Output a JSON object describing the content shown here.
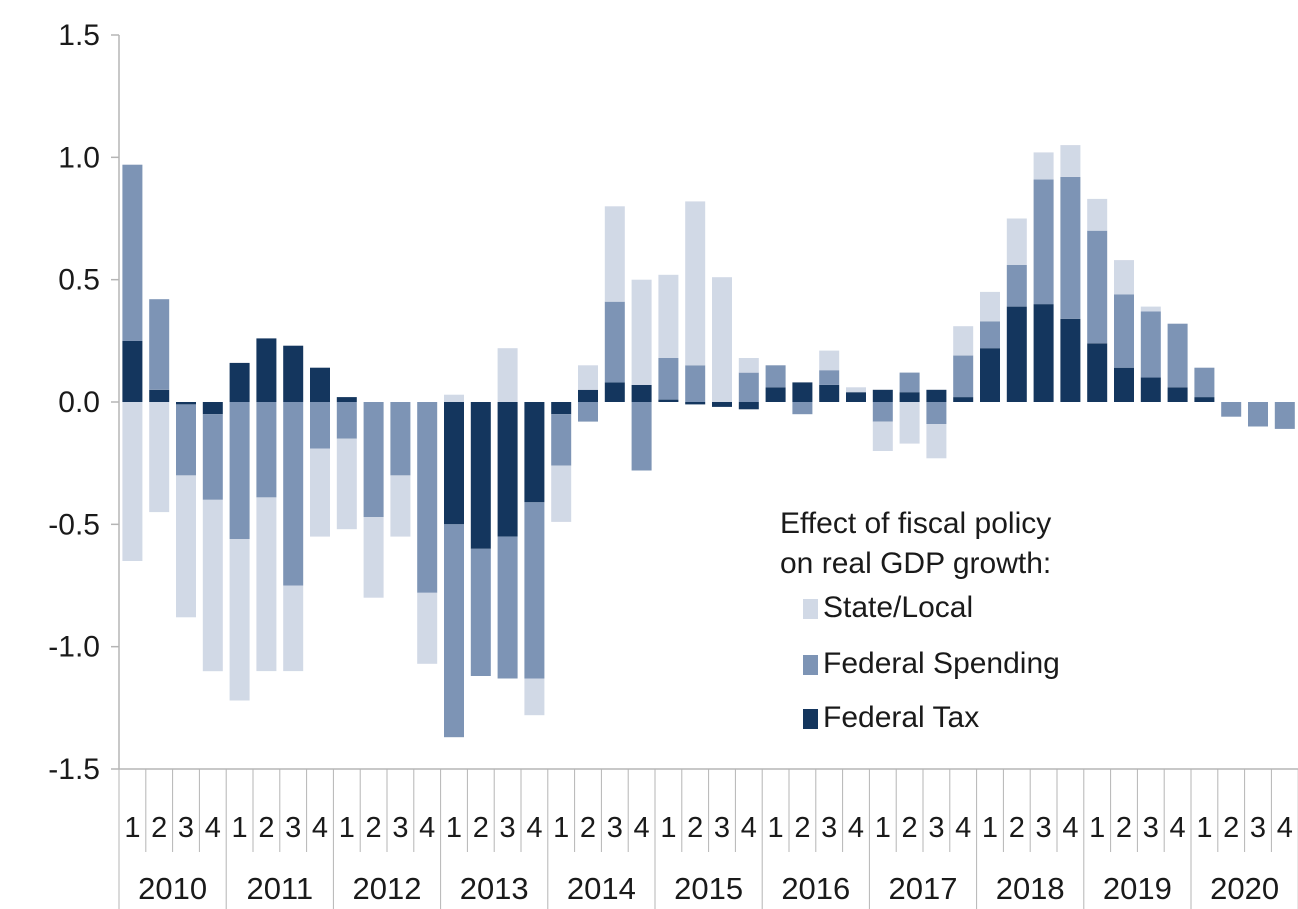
{
  "chart_data": {
    "type": "bar",
    "stacked": true,
    "ylim": [
      -1.5,
      1.5
    ],
    "yticks": [
      "1.5",
      "1.0",
      "0.5",
      "0.0",
      "-0.5",
      "-1.0",
      "-1.5"
    ],
    "ytick_values": [
      1.5,
      1.0,
      0.5,
      0.0,
      -0.5,
      -1.0,
      -1.5
    ],
    "quarter_labels": [
      "1",
      "2",
      "3",
      "4",
      "1",
      "2",
      "3",
      "4",
      "1",
      "2",
      "3",
      "4",
      "1",
      "2",
      "3",
      "4",
      "1",
      "2",
      "3",
      "4",
      "1",
      "2",
      "3",
      "4",
      "1",
      "2",
      "3",
      "4",
      "1",
      "2",
      "3",
      "4",
      "1",
      "2",
      "3",
      "4",
      "1",
      "2",
      "3",
      "4",
      "1",
      "2",
      "3",
      "4"
    ],
    "years": [
      "2010",
      "2011",
      "2012",
      "2013",
      "2014",
      "2015",
      "2016",
      "2017",
      "2018",
      "2019",
      "2020"
    ],
    "grid": false,
    "legend_placement": "center-right",
    "legend_title_lines": [
      "Effect of fiscal policy",
      "on real GDP growth:"
    ],
    "series": [
      {
        "name": "Federal Tax",
        "color": "#14365e",
        "values": [
          0.25,
          0.05,
          -0.01,
          -0.05,
          0.16,
          0.26,
          0.23,
          0.14,
          0.02,
          0,
          0,
          0,
          -0.5,
          -0.6,
          -0.55,
          -0.41,
          -0.05,
          0.05,
          0.08,
          0.07,
          0.01,
          -0.01,
          -0.02,
          -0.03,
          0.06,
          0.08,
          0.07,
          0.04,
          0.05,
          0.04,
          0.05,
          0.02,
          0.22,
          0.39,
          0.4,
          0.34,
          0.24,
          0.14,
          0.1,
          0.06,
          0.02,
          0,
          0,
          0
        ]
      },
      {
        "name": "Federal Spending",
        "color": "#7d94b5",
        "values": [
          0.72,
          0.37,
          -0.29,
          -0.35,
          -0.56,
          -0.39,
          -0.75,
          -0.19,
          -0.15,
          -0.47,
          -0.3,
          -0.78,
          -0.87,
          -0.52,
          -0.58,
          -0.72,
          -0.21,
          -0.08,
          0.33,
          -0.28,
          0.17,
          0.15,
          0.0,
          0.12,
          0.09,
          -0.05,
          0.06,
          0.0,
          -0.08,
          0.08,
          -0.09,
          0.17,
          0.11,
          0.17,
          0.51,
          0.58,
          0.46,
          0.3,
          0.27,
          0.26,
          0.12,
          -0.06,
          -0.1,
          -0.11
        ]
      },
      {
        "name": "State/Local",
        "color": "#d1d9e6",
        "values": [
          -0.65,
          -0.45,
          -0.58,
          -0.7,
          -0.66,
          -0.71,
          -0.35,
          -0.36,
          -0.37,
          -0.33,
          -0.25,
          -0.29,
          0.03,
          0,
          0.22,
          -0.15,
          -0.23,
          0.1,
          0.39,
          0.43,
          0.34,
          0.67,
          0.51,
          0.06,
          0.0,
          0.0,
          0.08,
          0.02,
          -0.12,
          -0.17,
          -0.14,
          0.12,
          0.12,
          0.19,
          0.11,
          0.13,
          0.13,
          0.14,
          0.02,
          0.0,
          0.0,
          0.0,
          0.0,
          0.0
        ]
      }
    ]
  }
}
